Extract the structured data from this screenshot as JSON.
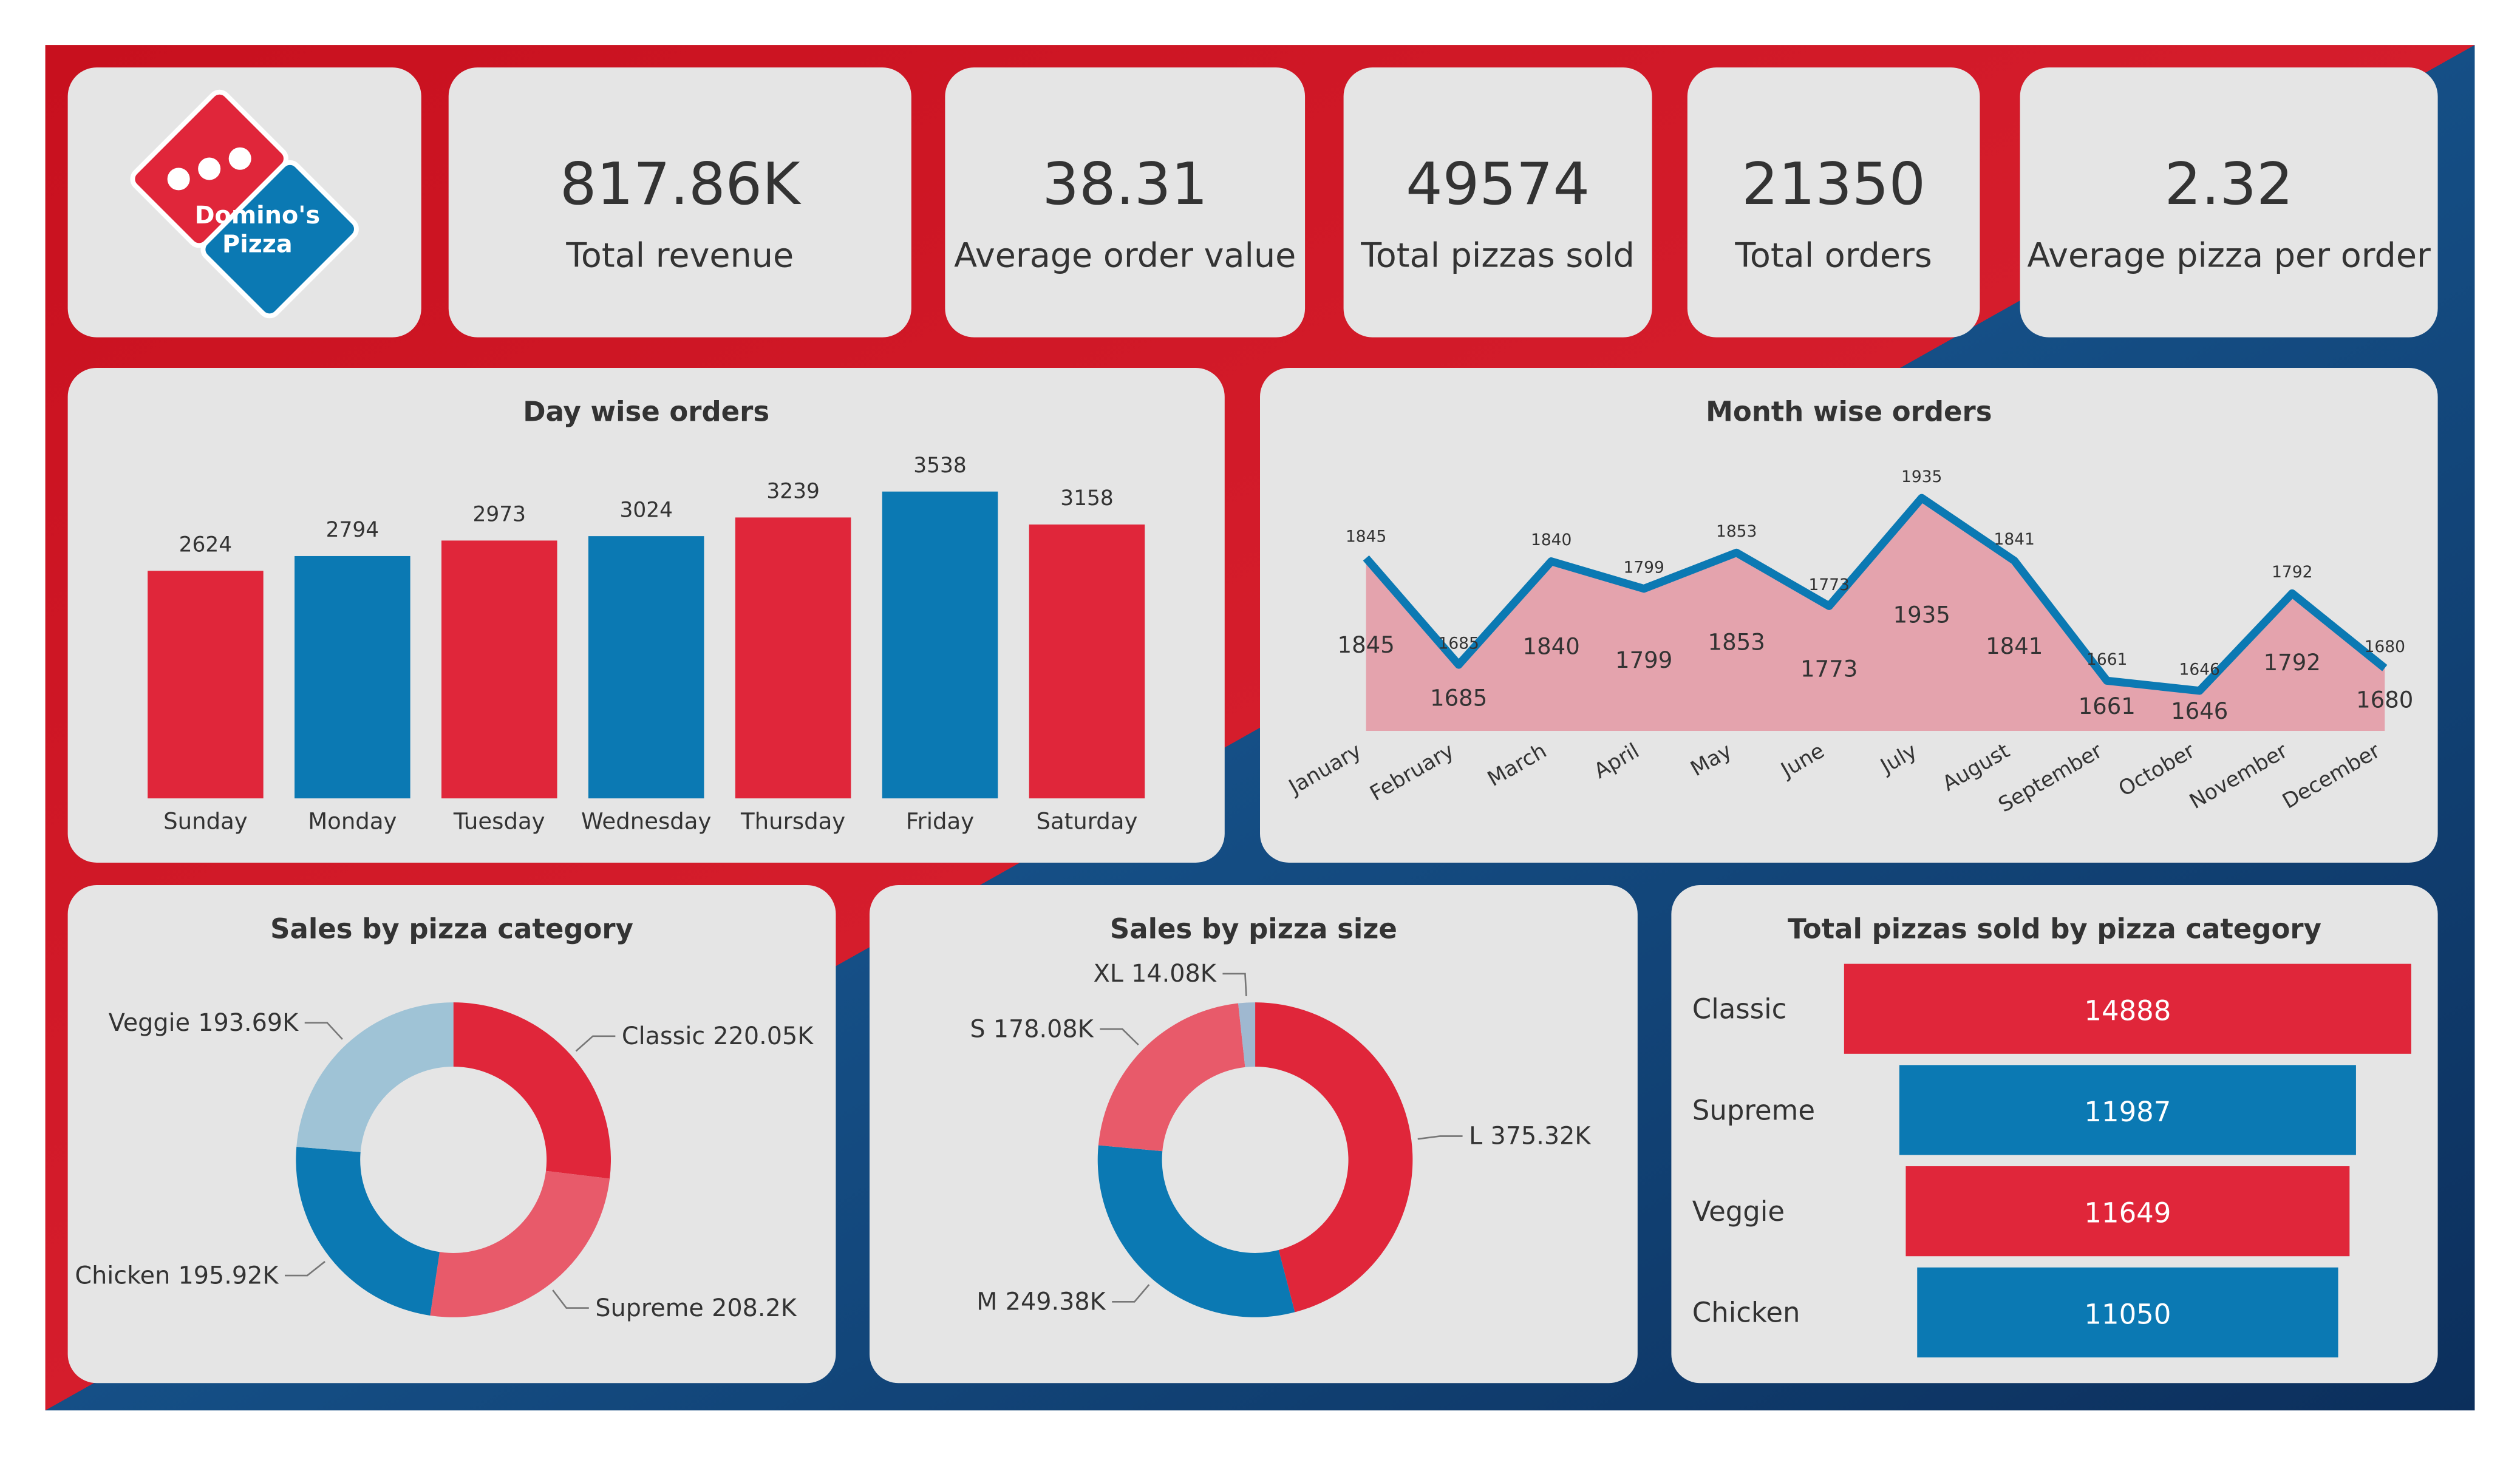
{
  "logo": {
    "line1": "Domino's",
    "line2": "Pizza"
  },
  "kpis": [
    {
      "value": "817.86K",
      "label": "Total revenue"
    },
    {
      "value": "38.31",
      "label": "Average order value"
    },
    {
      "value": "49574",
      "label": "Total pizzas sold"
    },
    {
      "value": "21350",
      "label": "Total orders"
    },
    {
      "value": "2.32",
      "label": "Average pizza per order"
    }
  ],
  "chart_data": [
    {
      "type": "bar",
      "title": "Day wise orders",
      "categories": [
        "Sunday",
        "Monday",
        "Tuesday",
        "Wednesday",
        "Thursday",
        "Friday",
        "Saturday"
      ],
      "values": [
        2624,
        2794,
        2973,
        3024,
        3239,
        3538,
        3158
      ],
      "colors": [
        "#e0263a",
        "#0b79b3",
        "#e0263a",
        "#0b79b3",
        "#e0263a",
        "#0b79b3",
        "#e0263a"
      ]
    },
    {
      "type": "area",
      "title": "Month wise orders",
      "categories": [
        "January",
        "February",
        "March",
        "April",
        "May",
        "June",
        "July",
        "August",
        "September",
        "October",
        "November",
        "December"
      ],
      "values": [
        1845,
        1685,
        1840,
        1799,
        1853,
        1773,
        1935,
        1841,
        1661,
        1646,
        1792,
        1680
      ],
      "color": "#0b79b3",
      "fill": "#e4a3ad"
    },
    {
      "type": "donut",
      "title": "Sales by pizza category",
      "categories": [
        "Classic",
        "Supreme",
        "Chicken",
        "Veggie"
      ],
      "values": [
        220.05,
        208.2,
        195.92,
        193.69
      ],
      "value_labels": [
        "220.05K",
        "208.2K",
        "195.92K",
        "193.69K"
      ],
      "colors": [
        "#e0263a",
        "#e85a6a",
        "#0b79b3",
        "#9fc3d6"
      ]
    },
    {
      "type": "donut",
      "title": "Sales by pizza size",
      "categories": [
        "L",
        "M",
        "S",
        "XL"
      ],
      "values": [
        375.32,
        249.38,
        178.08,
        14.08
      ],
      "value_labels": [
        "375.32K",
        "249.38K",
        "178.08K",
        "14.08K"
      ],
      "colors": [
        "#e0263a",
        "#0b79b3",
        "#e85a6a",
        "#9fb8d0"
      ]
    },
    {
      "type": "funnel",
      "title": "Total pizzas sold by pizza category",
      "categories": [
        "Classic",
        "Supreme",
        "Veggie",
        "Chicken"
      ],
      "values": [
        14888,
        11987,
        11649,
        11050
      ],
      "colors": [
        "#e0263a",
        "#0b79b3",
        "#e0263a",
        "#0b79b3"
      ]
    }
  ]
}
